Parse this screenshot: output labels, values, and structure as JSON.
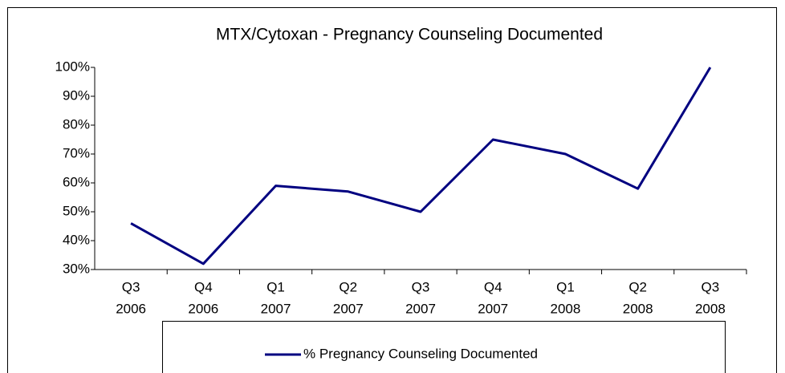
{
  "chart_data": {
    "type": "line",
    "title": "MTX/Cytoxan - Pregnancy Counseling  Documented",
    "categories": [
      [
        "Q3",
        "2006"
      ],
      [
        "Q4",
        "2006"
      ],
      [
        "Q1",
        "2007"
      ],
      [
        "Q2",
        "2007"
      ],
      [
        "Q3",
        "2007"
      ],
      [
        "Q4",
        "2007"
      ],
      [
        "Q1",
        "2008"
      ],
      [
        "Q2",
        "2008"
      ],
      [
        "Q3",
        "2008"
      ]
    ],
    "series": [
      {
        "name": "% Pregnancy Counseling Documented",
        "color": "#000080",
        "values": [
          46,
          32,
          59,
          57,
          50,
          75,
          70,
          58,
          100
        ]
      }
    ],
    "ylim": [
      30,
      100
    ],
    "yticks": [
      {
        "value": 30,
        "label": "30%"
      },
      {
        "value": 40,
        "label": "40%"
      },
      {
        "value": 50,
        "label": "50%"
      },
      {
        "value": 60,
        "label": "60%"
      },
      {
        "value": 70,
        "label": "70%"
      },
      {
        "value": 80,
        "label": "80%"
      },
      {
        "value": 90,
        "label": "90%"
      },
      {
        "value": 100,
        "label": "100%"
      }
    ],
    "legend": "bottom"
  }
}
